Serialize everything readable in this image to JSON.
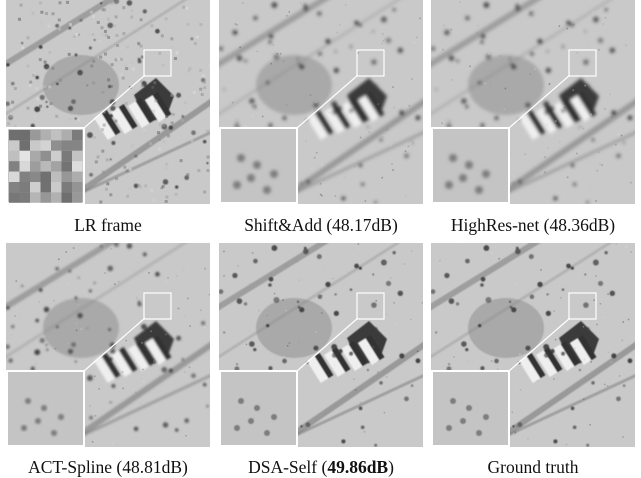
{
  "panels": [
    {
      "id": "lr",
      "caption_plain": "LR frame",
      "caption_bold": "",
      "caption_end": "",
      "quality": "noisy-blocky"
    },
    {
      "id": "shiftadd",
      "caption_plain": "Shift&Add (48.17dB)",
      "caption_bold": "",
      "caption_end": "",
      "quality": "soft"
    },
    {
      "id": "highres",
      "caption_plain": "HighRes-net (48.36dB)",
      "caption_bold": "",
      "caption_end": "",
      "quality": "soft"
    },
    {
      "id": "actspline",
      "caption_plain": "ACT-Spline (48.81dB)",
      "caption_bold": "",
      "caption_end": "",
      "quality": "medium"
    },
    {
      "id": "dsaself",
      "caption_plain": "DSA-Self (",
      "caption_bold": "49.86dB",
      "caption_end": ")",
      "quality": "sharp"
    },
    {
      "id": "gt",
      "caption_plain": "Ground truth",
      "caption_bold": "",
      "caption_end": "",
      "quality": "sharp"
    }
  ],
  "colors": {
    "ground": "#c9c9c9",
    "dark_roof": "#3a3a3a",
    "frame": "#ffffff"
  }
}
